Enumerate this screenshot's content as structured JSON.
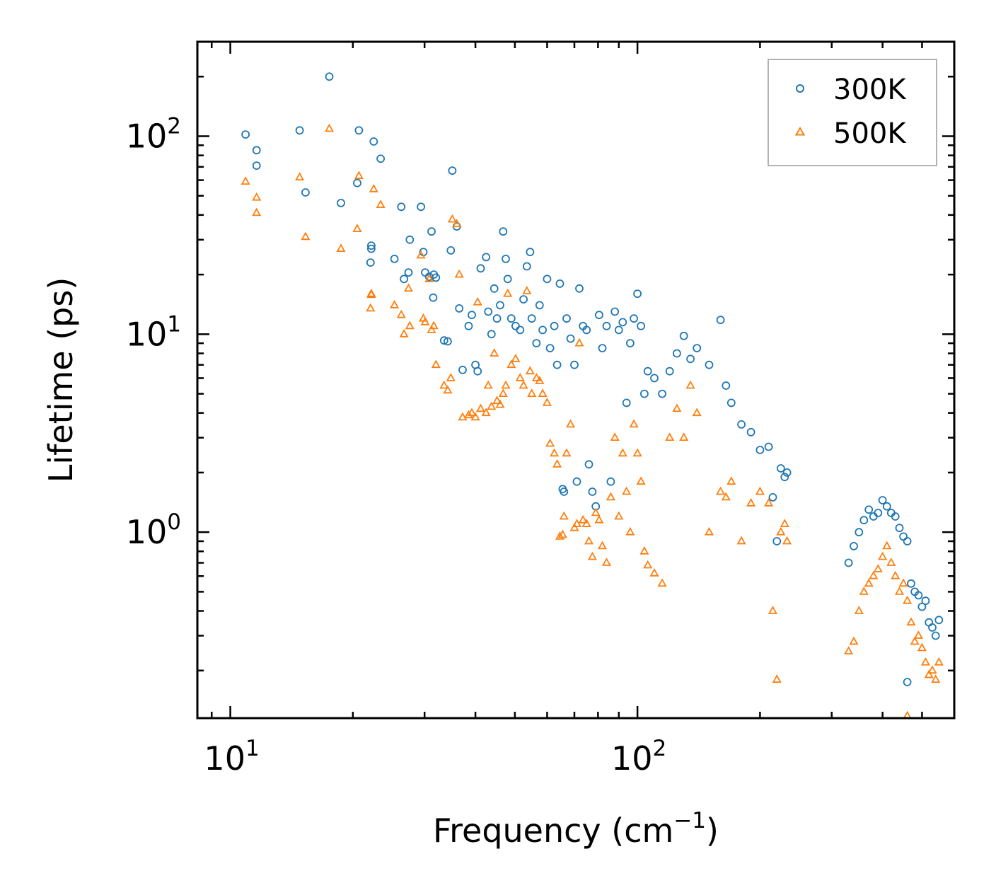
{
  "chart_data": {
    "type": "scatter",
    "xscale": "log",
    "yscale": "log",
    "xlabel": "Frequency (cm",
    "xlabel_sup": "−1",
    "xlabel_end": ")",
    "ylabel": "Lifetime (ps)",
    "xlim": [
      8.3,
      600
    ],
    "ylim": [
      0.115,
      300
    ],
    "x_ticks": [
      {
        "value": 10,
        "base": "10",
        "exp": "1"
      },
      {
        "value": 100,
        "base": "10",
        "exp": "2"
      }
    ],
    "y_ticks": [
      {
        "value": 1,
        "base": "10",
        "exp": "0"
      },
      {
        "value": 10,
        "base": "10",
        "exp": "1"
      },
      {
        "value": 100,
        "base": "10",
        "exp": "2"
      }
    ],
    "legend": {
      "position": "top-right"
    },
    "series": [
      {
        "name": "300K",
        "marker": "circle",
        "color": "#1f77b4",
        "points": [
          [
            10.9,
            102
          ],
          [
            11.6,
            85
          ],
          [
            11.6,
            71
          ],
          [
            14.8,
            107
          ],
          [
            15.3,
            52
          ],
          [
            17.5,
            200
          ],
          [
            18.7,
            46
          ],
          [
            20.5,
            58
          ],
          [
            20.7,
            107
          ],
          [
            22.2,
            28
          ],
          [
            22.2,
            27
          ],
          [
            22.1,
            23
          ],
          [
            22.5,
            94
          ],
          [
            23.4,
            77
          ],
          [
            25.3,
            24
          ],
          [
            26.3,
            44
          ],
          [
            26.7,
            19
          ],
          [
            27.4,
            20.5
          ],
          [
            27.6,
            30
          ],
          [
            29.4,
            44
          ],
          [
            29.8,
            26
          ],
          [
            30.1,
            20.5
          ],
          [
            30.8,
            19.5
          ],
          [
            31.2,
            33
          ],
          [
            31.6,
            20
          ],
          [
            32.0,
            19.3
          ],
          [
            31.5,
            15.3
          ],
          [
            33.5,
            9.3
          ],
          [
            34.2,
            9.2
          ],
          [
            34.8,
            26.5
          ],
          [
            35.1,
            67
          ],
          [
            36.0,
            35
          ],
          [
            36.5,
            13.5
          ],
          [
            37.2,
            6.6
          ],
          [
            38.5,
            11
          ],
          [
            39.2,
            12.5
          ],
          [
            40.0,
            7
          ],
          [
            40.5,
            6.5
          ],
          [
            41.2,
            21.5
          ],
          [
            42.5,
            24.5
          ],
          [
            43.0,
            13
          ],
          [
            43.8,
            10
          ],
          [
            44.5,
            17
          ],
          [
            45.2,
            12
          ],
          [
            46.0,
            14
          ],
          [
            46.8,
            33
          ],
          [
            47.5,
            24
          ],
          [
            48.0,
            19
          ],
          [
            49.0,
            12
          ],
          [
            50.2,
            11
          ],
          [
            51.5,
            10.5
          ],
          [
            52.5,
            15
          ],
          [
            53.5,
            22
          ],
          [
            54.5,
            26
          ],
          [
            55.0,
            12
          ],
          [
            56.5,
            9
          ],
          [
            57.5,
            14
          ],
          [
            58.5,
            10.5
          ],
          [
            60.0,
            19
          ],
          [
            61.0,
            8.5
          ],
          [
            62.5,
            11
          ],
          [
            63.5,
            7
          ],
          [
            64.5,
            18
          ],
          [
            65.5,
            1.65
          ],
          [
            66.0,
            1.6
          ],
          [
            67.0,
            12
          ],
          [
            68.5,
            9.5
          ],
          [
            70.0,
            7
          ],
          [
            71.0,
            1.8
          ],
          [
            72.0,
            17
          ],
          [
            73.5,
            11
          ],
          [
            75.0,
            10.5
          ],
          [
            76.0,
            2.2
          ],
          [
            77.5,
            1.6
          ],
          [
            79.0,
            1.35
          ],
          [
            80.5,
            12.5
          ],
          [
            82.0,
            8.5
          ],
          [
            84.0,
            11
          ],
          [
            86.0,
            1.8
          ],
          [
            88.0,
            13
          ],
          [
            90.0,
            10.5
          ],
          [
            92.0,
            11.5
          ],
          [
            94.0,
            4.5
          ],
          [
            96.0,
            9
          ],
          [
            98.0,
            12
          ],
          [
            100.0,
            16
          ],
          [
            102.0,
            11
          ],
          [
            104.0,
            5
          ],
          [
            106.0,
            6.5
          ],
          [
            110.0,
            6
          ],
          [
            115.0,
            5
          ],
          [
            120.0,
            6.5
          ],
          [
            125.0,
            8
          ],
          [
            130.0,
            9.8
          ],
          [
            135.0,
            7.5
          ],
          [
            140.0,
            8.5
          ],
          [
            150.0,
            7
          ],
          [
            160.0,
            11.8
          ],
          [
            165.0,
            5.5
          ],
          [
            170.0,
            4.5
          ],
          [
            180.0,
            3.5
          ],
          [
            190.0,
            3.2
          ],
          [
            200.0,
            2.6
          ],
          [
            210.0,
            2.7
          ],
          [
            215.0,
            1.5
          ],
          [
            220.0,
            0.9
          ],
          [
            225.0,
            2.1
          ],
          [
            230.0,
            1.9
          ],
          [
            233.0,
            2.0
          ],
          [
            330.0,
            0.7
          ],
          [
            340.0,
            0.85
          ],
          [
            350.0,
            1.0
          ],
          [
            360.0,
            1.15
          ],
          [
            370.0,
            1.3
          ],
          [
            380.0,
            1.2
          ],
          [
            390.0,
            1.25
          ],
          [
            400.0,
            1.45
          ],
          [
            410.0,
            1.35
          ],
          [
            420.0,
            1.25
          ],
          [
            430.0,
            1.2
          ],
          [
            440.0,
            1.05
          ],
          [
            450.0,
            0.95
          ],
          [
            460.0,
            0.9
          ],
          [
            470.0,
            0.55
          ],
          [
            480.0,
            0.5
          ],
          [
            490.0,
            0.48
          ],
          [
            500.0,
            0.42
          ],
          [
            510.0,
            0.45
          ],
          [
            520.0,
            0.35
          ],
          [
            530.0,
            0.33
          ],
          [
            540.0,
            0.3
          ],
          [
            550.0,
            0.36
          ],
          [
            460.0,
            0.175
          ]
        ]
      },
      {
        "name": "500K",
        "marker": "triangle",
        "color": "#ff7f0e",
        "points": [
          [
            10.9,
            59
          ],
          [
            11.6,
            49
          ],
          [
            11.6,
            41
          ],
          [
            14.8,
            62
          ],
          [
            15.3,
            31
          ],
          [
            17.5,
            109
          ],
          [
            18.7,
            27
          ],
          [
            20.5,
            34
          ],
          [
            20.7,
            63
          ],
          [
            22.2,
            16
          ],
          [
            22.2,
            15.8
          ],
          [
            22.1,
            13.5
          ],
          [
            22.5,
            54
          ],
          [
            23.4,
            45
          ],
          [
            25.3,
            14
          ],
          [
            26.3,
            12.5
          ],
          [
            26.7,
            10
          ],
          [
            27.4,
            17
          ],
          [
            27.6,
            11
          ],
          [
            29.4,
            25
          ],
          [
            29.8,
            12
          ],
          [
            30.1,
            11.5
          ],
          [
            30.8,
            19
          ],
          [
            31.2,
            10.5
          ],
          [
            31.6,
            11
          ],
          [
            32.0,
            7
          ],
          [
            33.5,
            5.5
          ],
          [
            34.2,
            5.2
          ],
          [
            34.8,
            6
          ],
          [
            35.1,
            38
          ],
          [
            36.0,
            36
          ],
          [
            36.5,
            20
          ],
          [
            37.2,
            3.8
          ],
          [
            38.5,
            3.9
          ],
          [
            39.2,
            4
          ],
          [
            40.0,
            3.8
          ],
          [
            40.5,
            14.5
          ],
          [
            41.2,
            4.2
          ],
          [
            42.5,
            4
          ],
          [
            43.0,
            5.5
          ],
          [
            43.8,
            4.3
          ],
          [
            44.5,
            8
          ],
          [
            45.2,
            4.6
          ],
          [
            46.0,
            4.4
          ],
          [
            46.8,
            5
          ],
          [
            47.5,
            5.5
          ],
          [
            48.0,
            16
          ],
          [
            49.0,
            7
          ],
          [
            50.2,
            7.5
          ],
          [
            51.5,
            6
          ],
          [
            52.5,
            5.5
          ],
          [
            53.5,
            16.5
          ],
          [
            54.5,
            6.5
          ],
          [
            55.0,
            5
          ],
          [
            56.5,
            6
          ],
          [
            57.5,
            5.8
          ],
          [
            58.5,
            5
          ],
          [
            60.0,
            4.5
          ],
          [
            61.0,
            2.8
          ],
          [
            62.5,
            2.5
          ],
          [
            63.5,
            2.2
          ],
          [
            64.5,
            0.95
          ],
          [
            65.5,
            0.97
          ],
          [
            66.0,
            1.2
          ],
          [
            67.0,
            2.5
          ],
          [
            68.5,
            3.5
          ],
          [
            70.0,
            1.05
          ],
          [
            71.0,
            1.1
          ],
          [
            72.0,
            9
          ],
          [
            73.5,
            1.15
          ],
          [
            75.0,
            1.1
          ],
          [
            76.0,
            0.9
          ],
          [
            77.5,
            0.75
          ],
          [
            79.0,
            1.25
          ],
          [
            80.5,
            1.15
          ],
          [
            82.0,
            0.85
          ],
          [
            84.0,
            0.7
          ],
          [
            86.0,
            1.5
          ],
          [
            88.0,
            3
          ],
          [
            90.0,
            1.2
          ],
          [
            92.0,
            2.5
          ],
          [
            94.0,
            1.6
          ],
          [
            96.0,
            1.0
          ],
          [
            98.0,
            3.5
          ],
          [
            100.0,
            2.5
          ],
          [
            102.0,
            1.8
          ],
          [
            104.0,
            0.8
          ],
          [
            106.0,
            0.68
          ],
          [
            110.0,
            0.62
          ],
          [
            115.0,
            0.55
          ],
          [
            120.0,
            3.0
          ],
          [
            125.0,
            4.2
          ],
          [
            130.0,
            3.0
          ],
          [
            135.0,
            5.5
          ],
          [
            140.0,
            4.0
          ],
          [
            150.0,
            1.0
          ],
          [
            160.0,
            1.6
          ],
          [
            165.0,
            1.5
          ],
          [
            170.0,
            1.8
          ],
          [
            180.0,
            0.9
          ],
          [
            190.0,
            1.4
          ],
          [
            200.0,
            1.6
          ],
          [
            210.0,
            1.4
          ],
          [
            215.0,
            0.4
          ],
          [
            220.0,
            0.18
          ],
          [
            225.0,
            1.0
          ],
          [
            230.0,
            1.1
          ],
          [
            233.0,
            0.9
          ],
          [
            330.0,
            0.25
          ],
          [
            340.0,
            0.28
          ],
          [
            350.0,
            0.4
          ],
          [
            360.0,
            0.5
          ],
          [
            370.0,
            0.55
          ],
          [
            380.0,
            0.6
          ],
          [
            390.0,
            0.65
          ],
          [
            400.0,
            0.75
          ],
          [
            410.0,
            0.85
          ],
          [
            420.0,
            0.7
          ],
          [
            430.0,
            0.6
          ],
          [
            440.0,
            0.5
          ],
          [
            450.0,
            0.55
          ],
          [
            460.0,
            0.45
          ],
          [
            470.0,
            0.35
          ],
          [
            480.0,
            0.28
          ],
          [
            490.0,
            0.3
          ],
          [
            500.0,
            0.26
          ],
          [
            510.0,
            0.22
          ],
          [
            520.0,
            0.19
          ],
          [
            530.0,
            0.2
          ],
          [
            540.0,
            0.18
          ],
          [
            550.0,
            0.22
          ],
          [
            460.0,
            0.118
          ]
        ]
      }
    ]
  }
}
